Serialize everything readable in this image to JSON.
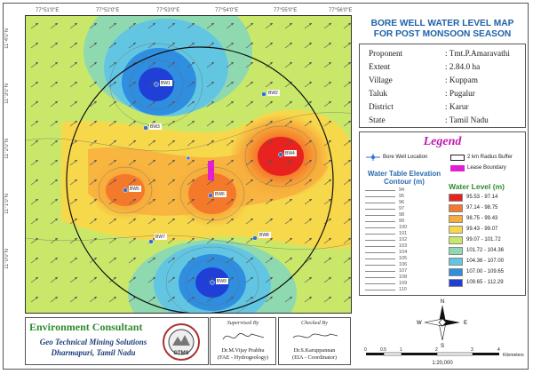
{
  "title": {
    "line1": "BORE WELL WATER LEVEL MAP",
    "line2": "FOR POST MONSOON SEASON"
  },
  "info": [
    {
      "key": "Proponent",
      "value": ": Tmt.P.Amaravathi"
    },
    {
      "key": "Extent",
      "value": ": 2.84.0 ha"
    },
    {
      "key": "Village",
      "value": ": Kuppam"
    },
    {
      "key": "Taluk",
      "value": ": Pugalur"
    },
    {
      "key": "District",
      "value": ": Karur"
    },
    {
      "key": "State",
      "value": ": Tamil Nadu"
    }
  ],
  "legend": {
    "title": "Legend",
    "bore_well": "Bore Well Location",
    "buffer": "2 km Radius Buffer",
    "lease": "Lease Boundary",
    "contour_caption1": "Water Table Elevation",
    "contour_caption2": "Contour (m)",
    "contour_values": [
      "94",
      "95",
      "96",
      "97",
      "98",
      "99",
      "100",
      "101",
      "102",
      "103",
      "104",
      "105",
      "106",
      "107",
      "108",
      "109",
      "110"
    ],
    "water_level_title": "Water Level (m)",
    "classes": [
      {
        "range": "95.53 - 97.14",
        "color": "#e8231f"
      },
      {
        "range": "97.14 - 98.75",
        "color": "#f4792a"
      },
      {
        "range": "98.75 - 99.43",
        "color": "#f7ad3c"
      },
      {
        "range": "99.43 - 99.07",
        "color": "#f7d84b"
      },
      {
        "range": "99.07 - 101.72",
        "color": "#c9e86a"
      },
      {
        "range": "101.72 - 104.36",
        "color": "#8fd9b0"
      },
      {
        "range": "104.36 - 107.00",
        "color": "#62c6e3"
      },
      {
        "range": "107.00 - 109.65",
        "color": "#2f8ee0"
      },
      {
        "range": "109.65 - 112.29",
        "color": "#1f3fd6"
      }
    ]
  },
  "consultant": {
    "title": "Environment Consultant",
    "name1": "Geo Technical Mining Solutions",
    "name2": "Dharmapuri, Tamil Nadu",
    "logo_text": "GTMS"
  },
  "prepared": {
    "heading": "Supervised By",
    "name": "Dr.M.Vijay Prabhu",
    "role": "(FAE - Hydrogeology)"
  },
  "checked": {
    "heading": "Checked By",
    "name": "Dr.S.Karuppannan",
    "role": "(EIA - Coordinator)"
  },
  "scale": {
    "ticks": [
      "0",
      "0.5",
      "1",
      "2",
      "3",
      "4"
    ],
    "unit": "Kilometers",
    "ratio": "1:20,000"
  },
  "north_arrow": {
    "n": "N",
    "s": "S",
    "e": "E",
    "w": "W"
  },
  "map": {
    "top_ticks": [
      "77°51'0\"E",
      "77°52'0\"E",
      "77°53'0\"E",
      "77°54'0\"E",
      "77°55'0\"E",
      "77°56'0\"E"
    ],
    "left_ticks": [
      "11°4'0\"N",
      "11°3'0\"N",
      "11°2'0\"N",
      "11°1'0\"N",
      "11°0'0\"N"
    ],
    "wells": [
      "BW1",
      "BW2",
      "BW3",
      "BW4",
      "BW5",
      "BW6",
      "BW7",
      "BW8",
      "BW9",
      "BW10"
    ]
  }
}
